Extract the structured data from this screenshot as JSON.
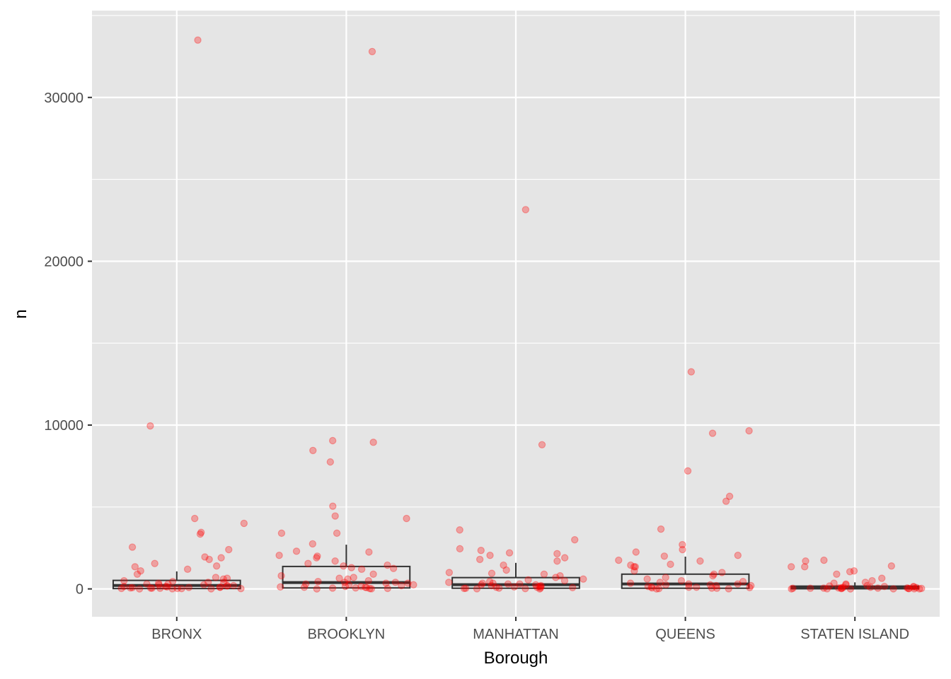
{
  "chart_data": {
    "type": "boxplot+jitter",
    "xlabel": "Borough",
    "ylabel": "n",
    "ylim": [
      -1700,
      35300
    ],
    "yticks": [
      0,
      10000,
      20000,
      30000
    ],
    "ytick_labels": [
      "0",
      "10000",
      "20000",
      "30000"
    ],
    "grid": true,
    "point_color": "#ff0000",
    "point_alpha": 0.3,
    "categories": [
      "BRONX",
      "BROOKLYN",
      "MANHATTAN",
      "QUEENS",
      "STATEN ISLAND"
    ],
    "boxes": [
      {
        "category": "BRONX",
        "lower": 0,
        "q1": 20,
        "median": 210,
        "q3": 520,
        "upper": 1070
      },
      {
        "category": "BROOKLYN",
        "lower": 0,
        "q1": 60,
        "median": 390,
        "q3": 1370,
        "upper": 2700
      },
      {
        "category": "MANHATTAN",
        "lower": 0,
        "q1": 40,
        "median": 260,
        "q3": 690,
        "upper": 1590
      },
      {
        "category": "QUEENS",
        "lower": 0,
        "q1": 40,
        "median": 300,
        "q3": 900,
        "upper": 1970
      },
      {
        "category": "STATEN ISLAND",
        "lower": 0,
        "q1": 10,
        "median": 60,
        "q3": 170,
        "upper": 400
      }
    ],
    "points": [
      {
        "category": "BRONX",
        "values": [
          33500,
          9950,
          4300,
          4000,
          3450,
          3350,
          2550,
          2400,
          1950,
          1900,
          1800,
          1550,
          1400,
          1350,
          1200,
          1100,
          900,
          700,
          650,
          600,
          500,
          450,
          400,
          350,
          300,
          250,
          200,
          180,
          150,
          120,
          100,
          80,
          60,
          50,
          40,
          30,
          20,
          10,
          5,
          0,
          300,
          200,
          100,
          50,
          20,
          400,
          250,
          150,
          90,
          30
        ]
      },
      {
        "category": "BROOKLYN",
        "values": [
          32800,
          9050,
          8950,
          8450,
          7750,
          5050,
          4450,
          4300,
          3400,
          3400,
          2750,
          2300,
          2250,
          2050,
          2000,
          1900,
          1700,
          1550,
          1450,
          1400,
          1300,
          1250,
          1200,
          900,
          800,
          700,
          650,
          600,
          500,
          450,
          400,
          350,
          300,
          250,
          200,
          150,
          120,
          100,
          80,
          50,
          30,
          10,
          0,
          350,
          250,
          150,
          100,
          60,
          20,
          400
        ]
      },
      {
        "category": "MANHATTAN",
        "values": [
          23150,
          8800,
          3600,
          3000,
          2450,
          2350,
          2200,
          2150,
          2050,
          1900,
          1800,
          1700,
          1450,
          1150,
          1000,
          950,
          900,
          800,
          700,
          600,
          550,
          500,
          450,
          400,
          350,
          300,
          250,
          200,
          150,
          120,
          100,
          80,
          60,
          40,
          20,
          10,
          0,
          300,
          200,
          150,
          100,
          50,
          250,
          350,
          30
        ]
      },
      {
        "category": "QUEENS",
        "values": [
          13250,
          9650,
          9500,
          7200,
          5650,
          5350,
          3650,
          2700,
          2400,
          2250,
          2050,
          2000,
          1750,
          1700,
          1500,
          1450,
          1350,
          1350,
          1100,
          1000,
          900,
          800,
          700,
          600,
          500,
          450,
          400,
          350,
          300,
          250,
          200,
          150,
          120,
          100,
          80,
          60,
          40,
          20,
          10,
          0,
          300,
          200,
          100,
          50,
          250
        ]
      },
      {
        "category": "STATEN ISLAND",
        "values": [
          1750,
          1700,
          1400,
          1350,
          1350,
          1100,
          1050,
          900,
          650,
          500,
          400,
          350,
          300,
          250,
          200,
          180,
          150,
          120,
          100,
          80,
          60,
          50,
          40,
          30,
          20,
          10,
          5,
          0,
          100,
          60,
          40,
          20,
          10,
          80,
          150,
          30,
          5,
          0,
          50,
          25
        ]
      }
    ]
  }
}
